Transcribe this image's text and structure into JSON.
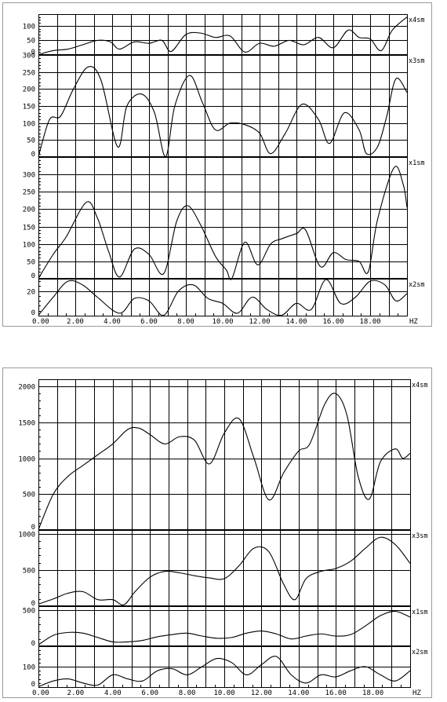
{
  "chart_data": [
    {
      "type": "line",
      "x_label": "HZ",
      "x_ticks": [
        "0.00",
        "2.00",
        "4.00",
        "6.00",
        "8.00",
        "10.00",
        "12.00",
        "14.00",
        "16.00",
        "18.00"
      ],
      "xlim": [
        0,
        20
      ],
      "grid": true,
      "panels": [
        {
          "name": "x4sm",
          "ylim": [
            0,
            140
          ],
          "y_ticks": [
            "0",
            "50",
            "100"
          ],
          "y_tick_values": [
            0,
            50,
            100
          ],
          "x": [
            0,
            0.8,
            1.6,
            2.4,
            3.2,
            3.9,
            4.4,
            5.2,
            6.0,
            6.7,
            7.2,
            8.0,
            8.8,
            9.6,
            10.4,
            11.2,
            12.0,
            12.8,
            13.6,
            14.4,
            15.2,
            16.0,
            16.8,
            17.4,
            18.0,
            18.6,
            19.2,
            20.0
          ],
          "y": [
            0,
            15,
            20,
            35,
            50,
            45,
            20,
            45,
            40,
            50,
            12,
            70,
            75,
            60,
            65,
            10,
            40,
            30,
            50,
            35,
            60,
            25,
            85,
            60,
            55,
            15,
            85,
            130
          ]
        },
        {
          "name": "x3sm",
          "ylim": [
            0,
            300
          ],
          "y_ticks": [
            "0",
            "50",
            "100",
            "150",
            "200",
            "250",
            "300"
          ],
          "y_tick_values": [
            0,
            50,
            100,
            150,
            200,
            250,
            300
          ],
          "x": [
            0,
            0.6,
            1.2,
            1.9,
            2.7,
            3.4,
            4.3,
            4.8,
            5.6,
            6.3,
            6.9,
            7.4,
            8.2,
            8.9,
            9.6,
            10.4,
            11.2,
            12.0,
            12.6,
            13.4,
            14.3,
            15.2,
            15.8,
            16.6,
            17.4,
            17.8,
            18.4,
            18.9,
            19.4,
            20.0
          ],
          "y": [
            0,
            110,
            120,
            200,
            265,
            225,
            30,
            150,
            185,
            130,
            0,
            150,
            240,
            160,
            80,
            100,
            95,
            70,
            10,
            70,
            155,
            110,
            40,
            130,
            80,
            10,
            30,
            120,
            230,
            190
          ]
        },
        {
          "name": "x1sm",
          "ylim": [
            0,
            350
          ],
          "y_ticks": [
            "0",
            "50",
            "100",
            "150",
            "200",
            "250",
            "300"
          ],
          "y_tick_values": [
            0,
            50,
            100,
            150,
            200,
            250,
            300
          ],
          "x": [
            0,
            0.8,
            1.5,
            2.6,
            3.2,
            3.8,
            4.4,
            5.2,
            6.0,
            6.8,
            7.5,
            8.1,
            8.8,
            9.6,
            10.2,
            10.5,
            11.2,
            11.9,
            12.6,
            13.2,
            14.0,
            14.5,
            15.3,
            16.0,
            16.7,
            17.4,
            17.9,
            18.4,
            19.3,
            19.8,
            20.0
          ],
          "y": [
            0,
            70,
            120,
            220,
            175,
            80,
            5,
            85,
            70,
            15,
            165,
            210,
            155,
            65,
            25,
            0,
            105,
            40,
            100,
            115,
            130,
            140,
            35,
            75,
            55,
            50,
            20,
            170,
            320,
            270,
            205
          ]
        },
        {
          "name": "x2sm",
          "ylim": [
            0,
            30
          ],
          "y_ticks": [
            "0",
            "20"
          ],
          "y_tick_values": [
            0,
            20
          ],
          "x": [
            0,
            0.8,
            1.6,
            2.4,
            3.2,
            4.4,
            5.2,
            6.0,
            6.8,
            7.6,
            8.4,
            9.2,
            10.0,
            10.8,
            11.6,
            12.4,
            13.2,
            14.0,
            14.8,
            15.6,
            16.4,
            17.2,
            18.0,
            18.8,
            19.4,
            20.0
          ],
          "y": [
            0,
            15,
            28,
            25,
            15,
            2,
            14,
            12,
            0,
            20,
            25,
            14,
            10,
            2,
            15,
            5,
            0,
            10,
            5,
            30,
            10,
            15,
            28,
            25,
            12,
            18
          ]
        }
      ]
    },
    {
      "type": "line",
      "x_label": "HZ",
      "x_ticks": [
        "0.00",
        "2.00",
        "4.00",
        "6.00",
        "8.00",
        "10.00",
        "12.00",
        "14.00",
        "16.00",
        "18.00"
      ],
      "xlim": [
        0,
        20
      ],
      "grid": true,
      "panels": [
        {
          "name": "x4sm",
          "ylim": [
            0,
            2100
          ],
          "y_ticks": [
            "0",
            "500",
            "1000",
            "1500",
            "2000"
          ],
          "y_tick_values": [
            0,
            500,
            1000,
            1500,
            2000
          ],
          "x": [
            0,
            0.8,
            1.6,
            2.4,
            3.2,
            4.0,
            4.8,
            5.4,
            6.0,
            6.8,
            7.6,
            8.4,
            9.2,
            10.0,
            10.8,
            11.6,
            12.4,
            13.2,
            14.0,
            14.6,
            15.4,
            16.0,
            16.6,
            17.2,
            17.8,
            18.4,
            19.2,
            19.6,
            20.0
          ],
          "y": [
            0,
            500,
            750,
            900,
            1050,
            1200,
            1400,
            1420,
            1330,
            1200,
            1300,
            1250,
            920,
            1350,
            1550,
            1000,
            420,
            800,
            1100,
            1200,
            1750,
            1900,
            1600,
            750,
            430,
            950,
            1130,
            1000,
            1070
          ]
        },
        {
          "name": "x3sm",
          "ylim": [
            0,
            1050
          ],
          "y_ticks": [
            "0",
            "500",
            "1000"
          ],
          "y_tick_values": [
            0,
            500,
            1000
          ],
          "x": [
            0,
            0.8,
            1.6,
            2.4,
            3.2,
            4.0,
            4.6,
            5.2,
            6.0,
            6.8,
            7.6,
            8.4,
            9.2,
            10.0,
            10.8,
            11.6,
            12.4,
            13.2,
            13.8,
            14.4,
            15.2,
            16.0,
            16.8,
            17.6,
            18.4,
            19.2,
            20.0
          ],
          "y": [
            30,
            100,
            180,
            200,
            90,
            90,
            20,
            200,
            400,
            480,
            460,
            420,
            390,
            380,
            560,
            800,
            750,
            300,
            90,
            380,
            480,
            520,
            620,
            800,
            950,
            850,
            590
          ]
        },
        {
          "name": "x1sm",
          "ylim": [
            0,
            550
          ],
          "y_ticks": [
            "0",
            "500"
          ],
          "y_tick_values": [
            0,
            500
          ],
          "x": [
            0,
            0.8,
            1.6,
            2.4,
            3.2,
            4.0,
            4.8,
            5.6,
            6.4,
            7.2,
            8.0,
            8.8,
            9.6,
            10.4,
            11.2,
            12.0,
            12.8,
            13.6,
            14.4,
            15.2,
            16.0,
            16.8,
            17.6,
            18.4,
            19.2,
            20.0
          ],
          "y": [
            20,
            150,
            190,
            180,
            120,
            60,
            60,
            80,
            130,
            160,
            180,
            140,
            110,
            120,
            180,
            210,
            170,
            100,
            140,
            170,
            140,
            160,
            280,
            420,
            480,
            400
          ]
        },
        {
          "name": "x2sm",
          "ylim": [
            0,
            200
          ],
          "y_ticks": [
            "0",
            "100"
          ],
          "y_tick_values": [
            0,
            100
          ],
          "x": [
            0,
            0.8,
            1.6,
            2.4,
            3.2,
            4.0,
            4.8,
            5.6,
            6.4,
            7.2,
            8.0,
            8.8,
            9.6,
            10.4,
            11.2,
            12.0,
            12.8,
            13.6,
            14.4,
            15.2,
            16.0,
            16.8,
            17.6,
            18.4,
            19.2,
            20.0
          ],
          "y": [
            0,
            30,
            40,
            20,
            10,
            60,
            40,
            30,
            80,
            90,
            60,
            100,
            140,
            120,
            60,
            110,
            150,
            60,
            20,
            60,
            50,
            80,
            100,
            60,
            30,
            80
          ]
        }
      ]
    }
  ]
}
